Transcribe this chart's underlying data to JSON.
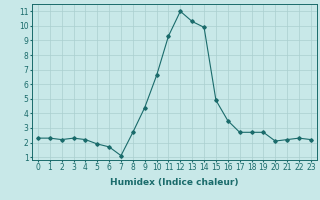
{
  "xlabel": "Humidex (Indice chaleur)",
  "x": [
    0,
    1,
    2,
    3,
    4,
    5,
    6,
    7,
    8,
    9,
    10,
    11,
    12,
    13,
    14,
    15,
    16,
    17,
    18,
    19,
    20,
    21,
    22,
    23
  ],
  "y": [
    2.3,
    2.3,
    2.2,
    2.3,
    2.2,
    1.9,
    1.7,
    1.1,
    2.7,
    4.4,
    6.6,
    9.3,
    11.0,
    10.3,
    9.9,
    4.9,
    3.5,
    2.7,
    2.7,
    2.7,
    2.1,
    2.2,
    2.3,
    2.2
  ],
  "line_color": "#1a6b6b",
  "marker": "D",
  "marker_size": 1.8,
  "bg_color": "#c8e8e8",
  "grid_color": "#aacfcf",
  "xlim": [
    -0.5,
    23.5
  ],
  "ylim": [
    0.8,
    11.5
  ],
  "yticks": [
    1,
    2,
    3,
    4,
    5,
    6,
    7,
    8,
    9,
    10,
    11
  ],
  "xticks": [
    0,
    1,
    2,
    3,
    4,
    5,
    6,
    7,
    8,
    9,
    10,
    11,
    12,
    13,
    14,
    15,
    16,
    17,
    18,
    19,
    20,
    21,
    22,
    23
  ],
  "tick_label_size": 5.5,
  "xlabel_size": 6.5,
  "line_width": 0.8
}
